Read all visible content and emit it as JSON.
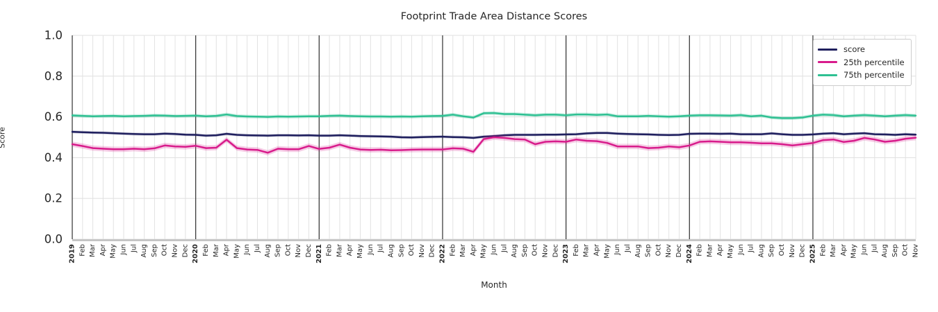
{
  "chart_data": {
    "type": "line",
    "title": "Footprint Trade Area Distance Scores",
    "xlabel": "Month",
    "ylabel": "Score",
    "ylim": [
      0.0,
      1.0
    ],
    "yticks": [
      0.0,
      0.2,
      0.4,
      0.6,
      0.8,
      1.0
    ],
    "grid": true,
    "legend_position": "upper right",
    "x_tick_labels": [
      "2019",
      "Feb",
      "Mar",
      "Apr",
      "May",
      "Jun",
      "Jul",
      "Aug",
      "Sep",
      "Oct",
      "Nov",
      "Dec",
      "2020",
      "Feb",
      "Mar",
      "Apr",
      "May",
      "Jun",
      "Jul",
      "Aug",
      "Sep",
      "Oct",
      "Nov",
      "Dec",
      "2021",
      "Feb",
      "Mar",
      "Apr",
      "May",
      "Jun",
      "Jul",
      "Aug",
      "Sep",
      "Oct",
      "Nov",
      "Dec",
      "2022",
      "Feb",
      "Mar",
      "Apr",
      "May",
      "Jun",
      "Jul",
      "Aug",
      "Sep",
      "Oct",
      "Nov",
      "Dec",
      "2023",
      "Feb",
      "Mar",
      "Apr",
      "May",
      "Jun",
      "Jul",
      "Aug",
      "Sep",
      "Oct",
      "Nov",
      "Dec",
      "2024",
      "Feb",
      "Mar",
      "Apr",
      "May",
      "Jun",
      "Jul",
      "Aug",
      "Sep",
      "Oct",
      "Nov",
      "Dec",
      "2025",
      "Feb",
      "Mar",
      "Apr",
      "May",
      "Jun",
      "Jul",
      "Aug",
      "Sep",
      "Oct",
      "Nov"
    ],
    "year_indices": [
      0,
      12,
      24,
      36,
      48,
      60,
      72
    ],
    "series": [
      {
        "name": "score",
        "color": "#1f1f5e",
        "band_halfwidth": 0.007,
        "values": [
          0.527,
          0.525,
          0.523,
          0.522,
          0.52,
          0.518,
          0.516,
          0.515,
          0.515,
          0.518,
          0.516,
          0.513,
          0.512,
          0.508,
          0.51,
          0.517,
          0.512,
          0.51,
          0.509,
          0.508,
          0.51,
          0.51,
          0.509,
          0.51,
          0.508,
          0.508,
          0.51,
          0.508,
          0.506,
          0.505,
          0.504,
          0.503,
          0.5,
          0.499,
          0.501,
          0.502,
          0.503,
          0.501,
          0.5,
          0.497,
          0.503,
          0.506,
          0.51,
          0.512,
          0.512,
          0.512,
          0.513,
          0.513,
          0.514,
          0.515,
          0.519,
          0.521,
          0.521,
          0.518,
          0.516,
          0.515,
          0.514,
          0.512,
          0.511,
          0.512,
          0.517,
          0.518,
          0.518,
          0.517,
          0.518,
          0.515,
          0.515,
          0.515,
          0.519,
          0.515,
          0.512,
          0.512,
          0.514,
          0.518,
          0.52,
          0.515,
          0.518,
          0.52,
          0.515,
          0.514,
          0.512,
          0.515,
          0.513
        ]
      },
      {
        "name": "25th percentile",
        "color": "#d81b8b",
        "band_halfwidth": 0.013,
        "values": [
          0.466,
          0.457,
          0.447,
          0.444,
          0.441,
          0.441,
          0.444,
          0.441,
          0.446,
          0.46,
          0.455,
          0.453,
          0.458,
          0.447,
          0.449,
          0.488,
          0.447,
          0.44,
          0.438,
          0.424,
          0.444,
          0.441,
          0.441,
          0.457,
          0.443,
          0.449,
          0.464,
          0.449,
          0.44,
          0.438,
          0.439,
          0.436,
          0.437,
          0.439,
          0.44,
          0.44,
          0.44,
          0.446,
          0.444,
          0.429,
          0.491,
          0.5,
          0.497,
          0.491,
          0.489,
          0.466,
          0.478,
          0.48,
          0.478,
          0.489,
          0.483,
          0.481,
          0.472,
          0.455,
          0.455,
          0.455,
          0.447,
          0.449,
          0.455,
          0.451,
          0.46,
          0.478,
          0.48,
          0.478,
          0.475,
          0.475,
          0.473,
          0.47,
          0.47,
          0.466,
          0.46,
          0.466,
          0.472,
          0.486,
          0.489,
          0.477,
          0.483,
          0.497,
          0.489,
          0.478,
          0.483,
          0.493,
          0.498
        ]
      },
      {
        "name": "75th percentile",
        "color": "#2ec092",
        "band_halfwidth": 0.009,
        "values": [
          0.607,
          0.605,
          0.603,
          0.604,
          0.605,
          0.603,
          0.604,
          0.605,
          0.607,
          0.606,
          0.604,
          0.605,
          0.606,
          0.603,
          0.605,
          0.612,
          0.604,
          0.602,
          0.601,
          0.6,
          0.602,
          0.601,
          0.602,
          0.603,
          0.603,
          0.605,
          0.606,
          0.604,
          0.603,
          0.602,
          0.602,
          0.601,
          0.602,
          0.601,
          0.603,
          0.604,
          0.605,
          0.611,
          0.603,
          0.597,
          0.618,
          0.619,
          0.614,
          0.614,
          0.611,
          0.608,
          0.611,
          0.611,
          0.608,
          0.612,
          0.612,
          0.61,
          0.612,
          0.603,
          0.603,
          0.603,
          0.605,
          0.603,
          0.601,
          0.603,
          0.606,
          0.608,
          0.608,
          0.607,
          0.606,
          0.609,
          0.603,
          0.606,
          0.597,
          0.594,
          0.594,
          0.597,
          0.606,
          0.611,
          0.609,
          0.603,
          0.606,
          0.609,
          0.606,
          0.603,
          0.606,
          0.609,
          0.606
        ]
      }
    ]
  },
  "colors": {
    "grid": "#e2e2e2",
    "year_line": "#2f2f2f",
    "spine": "#bfbfbf",
    "text": "#262626"
  }
}
